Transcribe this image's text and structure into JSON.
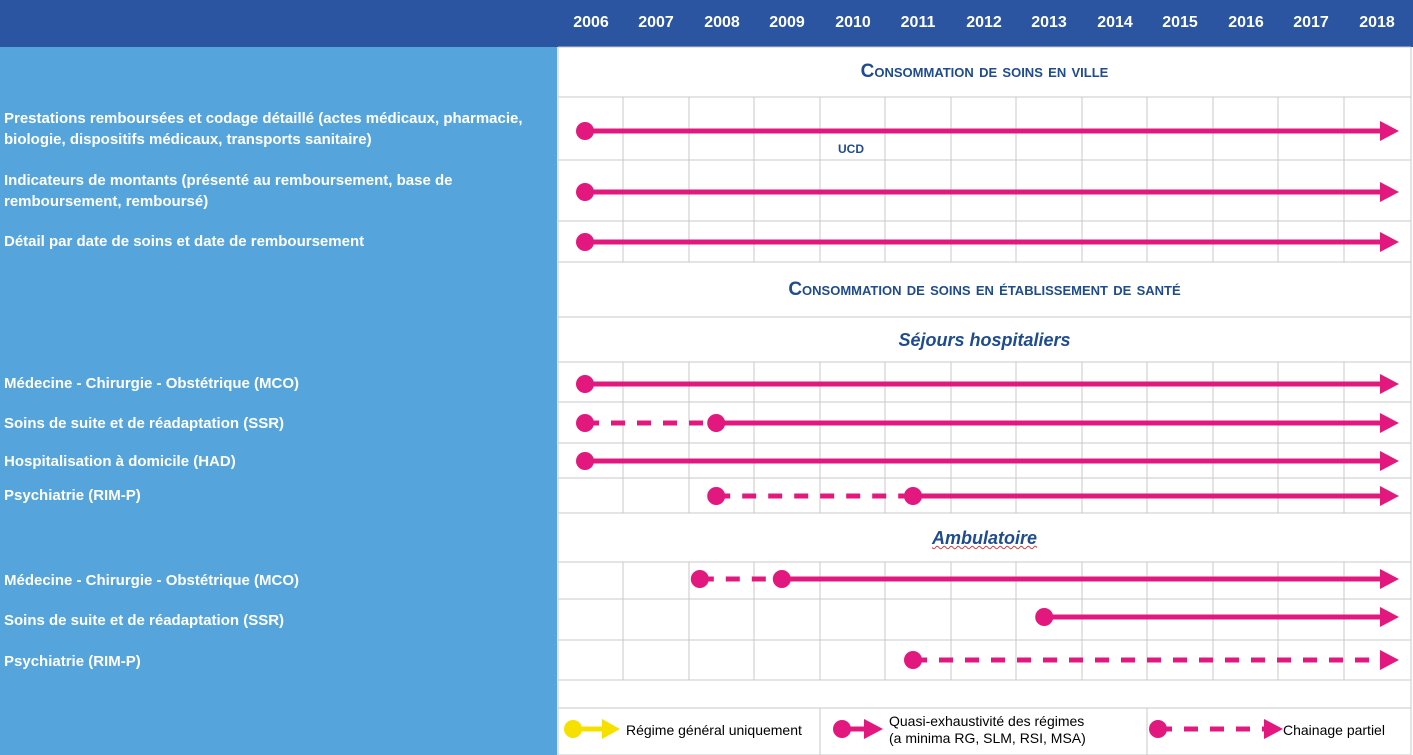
{
  "colors": {
    "header_bg": "#2b55a0",
    "sidebar_bg": "#55a5dc",
    "accent_magenta": "#e2187f",
    "accent_yellow": "#f5e000",
    "title_blue": "#1f4b8f",
    "grid": "#c8c8c8"
  },
  "years": [
    "2006",
    "2007",
    "2008",
    "2009",
    "2010",
    "2011",
    "2012",
    "2013",
    "2014",
    "2015",
    "2016",
    "2017",
    "2018"
  ],
  "sections": {
    "ville": "Consommation de soins en ville",
    "etablissement": "Consommation de soins en établissement de santé",
    "sejours": "Séjours hospitaliers",
    "ambulatoire": "Ambulatoire"
  },
  "rows": {
    "prestations": "Prestations remboursées et codage détaillé (actes médicaux, pharmacie, biologie, dispositifs médicaux, transports sanitaire)",
    "indicateurs": "Indicateurs de montants (présenté au remboursement, base de remboursement, remboursé)",
    "detail": "Détail par date de soins et date de remboursement",
    "mco_sejours": "Médecine - Chirurgie - Obstétrique (MCO)",
    "ssr_sejours": "Soins de suite et de réadaptation (SSR)",
    "had": "Hospitalisation à domicile (HAD)",
    "psy_sejours": "Psychiatrie (RIM-P)",
    "mco_amb": "Médecine - Chirurgie - Obstétrique (MCO)",
    "ssr_amb": "Soins de suite et de réadaptation (SSR)",
    "psy_amb": "Psychiatrie (RIM-P)"
  },
  "notes": {
    "ucd": "UCD"
  },
  "timelines": [
    {
      "row": "prestations",
      "segments": [
        {
          "from": 2006,
          "to": 2018,
          "style": "solid"
        }
      ]
    },
    {
      "row": "indicateurs",
      "segments": [
        {
          "from": 2006,
          "to": 2018,
          "style": "solid"
        }
      ]
    },
    {
      "row": "detail",
      "segments": [
        {
          "from": 2006,
          "to": 2018,
          "style": "solid"
        }
      ]
    },
    {
      "row": "mco_sejours",
      "segments": [
        {
          "from": 2006,
          "to": 2018,
          "style": "solid"
        }
      ]
    },
    {
      "row": "ssr_sejours",
      "segments": [
        {
          "from": 2006,
          "to": 2008,
          "style": "dashed"
        },
        {
          "from": 2008,
          "to": 2018,
          "style": "solid"
        }
      ]
    },
    {
      "row": "had",
      "segments": [
        {
          "from": 2006,
          "to": 2018,
          "style": "solid"
        }
      ]
    },
    {
      "row": "psy_sejours",
      "segments": [
        {
          "from": 2008,
          "to": 2011,
          "style": "dashed"
        },
        {
          "from": 2011,
          "to": 2018,
          "style": "solid"
        }
      ]
    },
    {
      "row": "mco_amb",
      "segments": [
        {
          "from": 2007.75,
          "to": 2009,
          "style": "dashed"
        },
        {
          "from": 2009,
          "to": 2018,
          "style": "solid"
        }
      ]
    },
    {
      "row": "ssr_amb",
      "segments": [
        {
          "from": 2013,
          "to": 2018,
          "style": "solid"
        }
      ]
    },
    {
      "row": "psy_amb",
      "segments": [
        {
          "from": 2011,
          "to": 2018,
          "style": "dashed"
        }
      ]
    }
  ],
  "legend": {
    "yellow": "Régime général uniquement",
    "solid_line1": "Quasi-exhaustivité des régimes",
    "solid_line2": "(a minima RG, SLM, RSI, MSA)",
    "dashed": "Chainage partiel"
  }
}
